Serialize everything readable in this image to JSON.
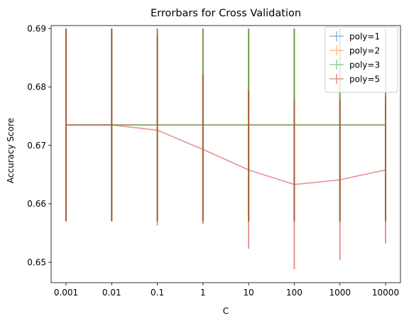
{
  "chart_data": {
    "type": "line",
    "title": "Errorbars for Cross Validation",
    "xlabel": "C",
    "ylabel": "Accuracy Score",
    "categories": [
      "0.001",
      "0.01",
      "0.1",
      "1",
      "10",
      "100",
      "1000",
      "10000"
    ],
    "ylim": [
      0.6465,
      0.6905
    ],
    "yticks": [
      0.65,
      0.66,
      0.67,
      0.68,
      0.69
    ],
    "ytick_labels": [
      "0.65",
      "0.66",
      "0.67",
      "0.68",
      "0.69"
    ],
    "grid": false,
    "legend_position": "top-right",
    "series": [
      {
        "name": "poly=1",
        "color": "#1f77b4",
        "alpha": 0.5,
        "values": [
          0.6735,
          0.6735,
          0.6735,
          0.6735,
          0.6735,
          0.6735,
          0.6735,
          0.6735
        ],
        "errors": [
          0.0165,
          0.0165,
          0.0165,
          0.0165,
          0.0165,
          0.0165,
          0.0165,
          0.0165
        ]
      },
      {
        "name": "poly=2",
        "color": "#ff7f0e",
        "alpha": 0.5,
        "values": [
          0.6735,
          0.6735,
          0.6735,
          0.6735,
          0.6735,
          0.6735,
          0.6735,
          0.6735
        ],
        "errors": [
          0.0165,
          0.0165,
          0.0165,
          0.0165,
          0.0165,
          0.0165,
          0.0165,
          0.0165
        ]
      },
      {
        "name": "poly=3",
        "color": "#2ca02c",
        "alpha": 0.5,
        "values": [
          0.6735,
          0.6735,
          0.6735,
          0.6735,
          0.6735,
          0.6735,
          0.6735,
          0.6735
        ],
        "errors": [
          0.0165,
          0.0165,
          0.0165,
          0.0165,
          0.0165,
          0.0165,
          0.0165,
          0.0165
        ]
      },
      {
        "name": "poly=5",
        "color": "#d62728",
        "alpha": 0.5,
        "values": [
          0.6735,
          0.6735,
          0.6726,
          0.6693,
          0.6658,
          0.6633,
          0.6641,
          0.6658
        ],
        "errors": [
          0.0165,
          0.0165,
          0.0163,
          0.0128,
          0.0135,
          0.0145,
          0.0137,
          0.0126
        ]
      }
    ]
  }
}
